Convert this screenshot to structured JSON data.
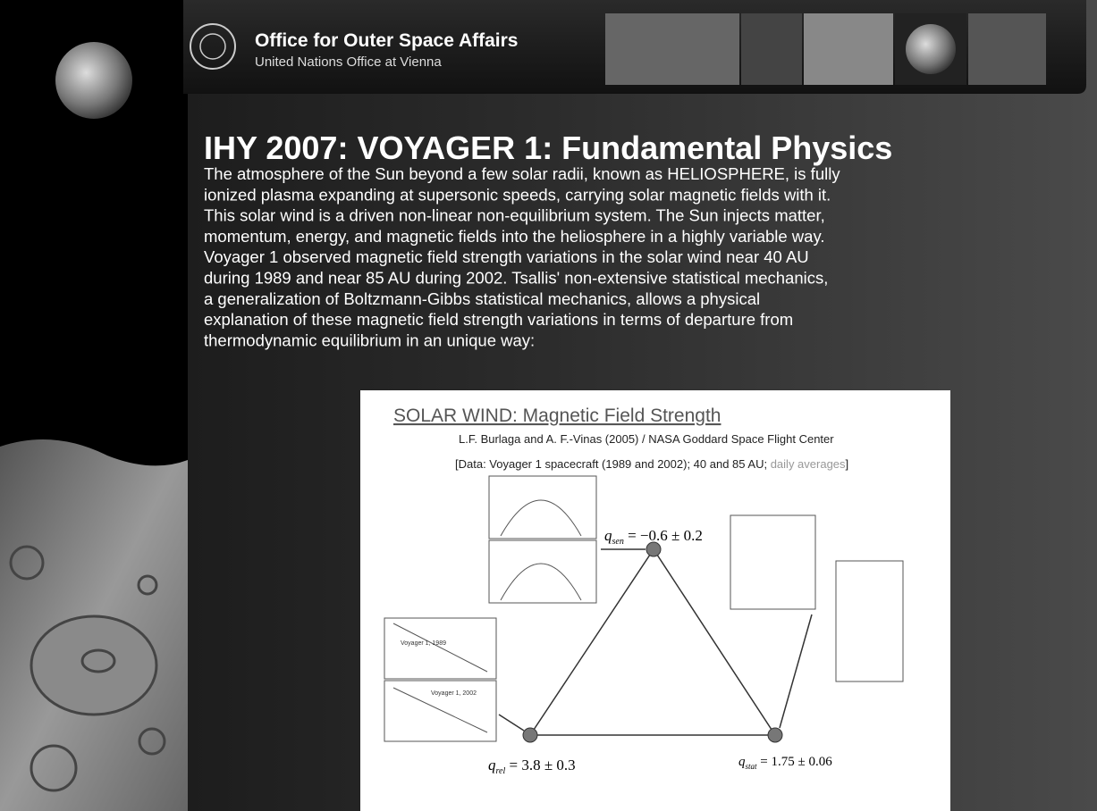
{
  "header": {
    "title": "Office for Outer Space Affairs",
    "subtitle": "United Nations Office at Vienna"
  },
  "slide": {
    "title": "IHY 2007: VOYAGER 1: Fundamental Physics",
    "body_lines": [
      "The atmosphere of the Sun beyond a few solar radii, known as HELIOSPHERE, is fully",
      "ionized plasma expanding at supersonic speeds, carrying solar magnetic fields with it.",
      "This solar wind is a driven non-linear non-equilibrium system. The Sun injects matter,",
      "momentum, energy, and magnetic fields into the heliosphere in a highly variable way.",
      "Voyager 1 observed magnetic field strength variations in the solar wind near 40 AU",
      "during 1989 and near 85 AU during 2002. Tsallis' non-extensive statistical mechanics,",
      "a generalization of Boltzmann-Gibbs statistical mechanics, allows a physical",
      "explanation of these magnetic field strength variations in terms of departure from",
      "thermodynamic equilibrium in an unique way:"
    ]
  },
  "figure": {
    "title": "SOLAR WIND: Magnetic Field Strength",
    "credit": "L.F. Burlaga and A. F.-Vinas (2005) / NASA Goddard Space Flight Center",
    "data_note": "[Data: Voyager 1 spacecraft (1989 and 2002); 40 and 85 AU;",
    "data_note_gray": "daily averages",
    "data_note_end": "]",
    "q_sen": {
      "symbol": "q",
      "sub": "sen",
      "text": " = −0.6 ± 0.2"
    },
    "q_rel": {
      "symbol": "q",
      "sub": "rel",
      "text": " = 3.8 ± 0.3"
    },
    "q_stat": {
      "symbol": "q",
      "sub": "stat",
      "text": " = 1.75 ± 0.06"
    },
    "panel_labels": [
      "Voyager 1, 1989",
      "Voyager 1, 2002"
    ]
  }
}
